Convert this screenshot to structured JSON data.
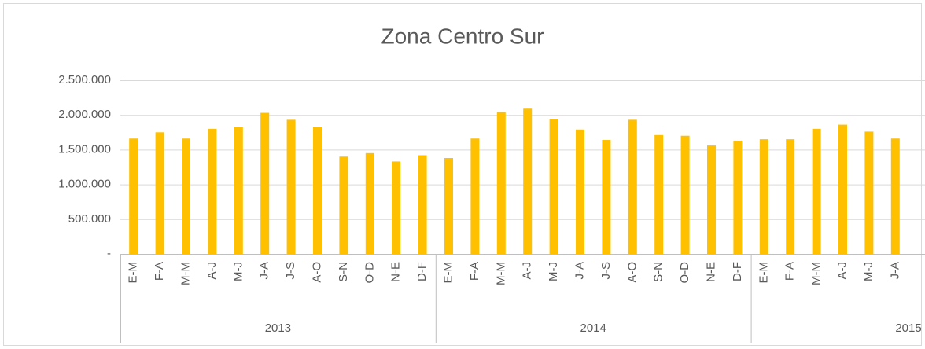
{
  "chart_data": {
    "type": "bar",
    "title": "Zona Centro Sur",
    "category_groups": [
      {
        "label": "2013",
        "categories": [
          "E-M",
          "F-A",
          "M-M",
          "A-J",
          "M-J",
          "J-A",
          "J-S",
          "A-O",
          "S-N",
          "O-D",
          "N-E",
          "D-F"
        ]
      },
      {
        "label": "2014",
        "categories": [
          "E-M",
          "F-A",
          "M-M",
          "A-J",
          "M-J",
          "J-A",
          "J-S",
          "A-O",
          "S-N",
          "O-D",
          "N-E",
          "D-F"
        ]
      },
      {
        "label": "2015",
        "categories": [
          "E-M",
          "F-A",
          "M-M",
          "A-J",
          "M-J",
          "J-A"
        ]
      }
    ],
    "values": [
      1660000,
      1750000,
      1660000,
      1800000,
      1830000,
      2030000,
      1930000,
      1830000,
      1400000,
      1450000,
      1330000,
      1420000,
      1380000,
      1660000,
      2040000,
      2090000,
      1940000,
      1790000,
      1640000,
      1930000,
      1710000,
      1700000,
      1560000,
      1630000,
      1650000,
      1650000,
      1800000,
      1860000,
      1760000,
      1660000
    ],
    "color": "#ffc000",
    "ylim": [
      0,
      2500000
    ],
    "yticks": [
      {
        "value": 0,
        "label": "-"
      },
      {
        "value": 500000,
        "label": "500.000"
      },
      {
        "value": 1000000,
        "label": "1.000.000"
      },
      {
        "value": 1500000,
        "label": "1.500.000"
      },
      {
        "value": 2000000,
        "label": "2.000.000"
      },
      {
        "value": 2500000,
        "label": "2.500.000"
      }
    ],
    "grid": true
  }
}
